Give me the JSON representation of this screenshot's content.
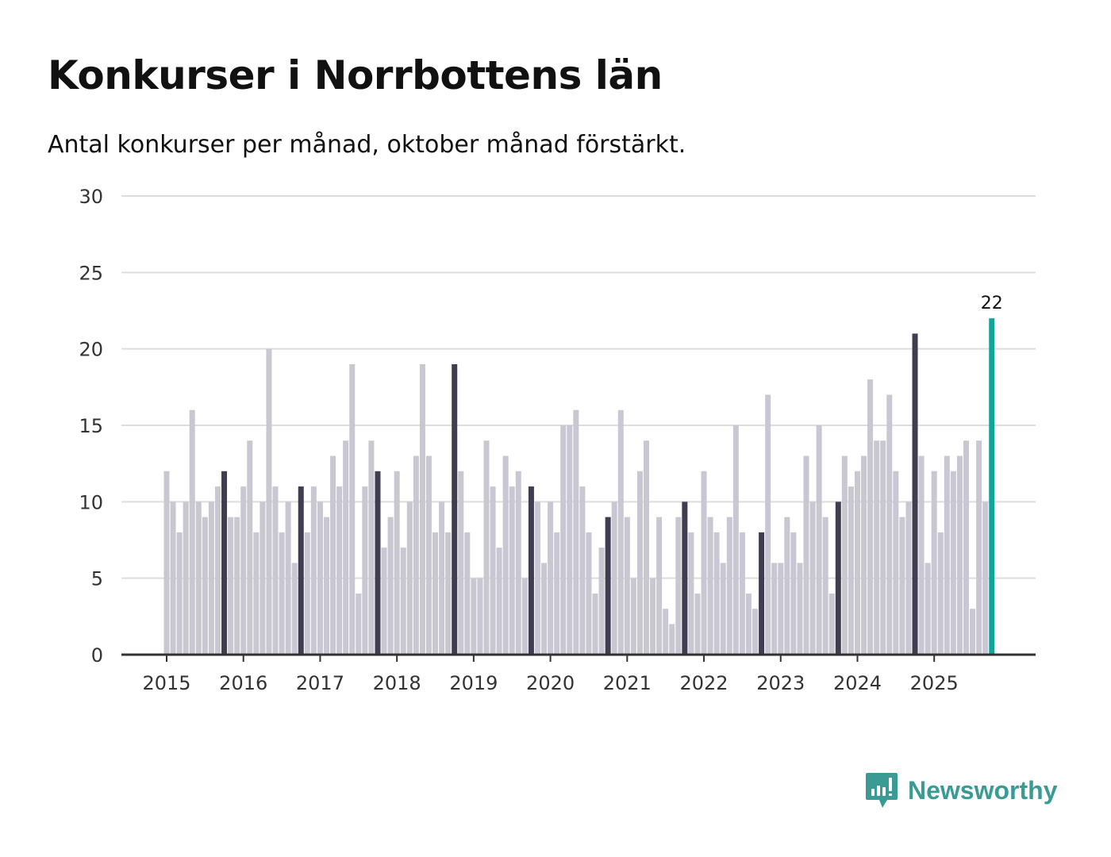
{
  "title": "Konkurser i Norrbottens län",
  "subtitle": "Antal konkurser per månad, oktober månad förstärkt.",
  "brand": "Newsworthy",
  "colors": {
    "default": "#c8c7d2",
    "october": "#3f3d4f",
    "latest": "#11a59a",
    "grid": "#dddddd",
    "axis": "#333333",
    "brand": "#3a9a94"
  },
  "chart_data": {
    "type": "bar",
    "title": "Konkurser i Norrbottens län",
    "xlabel": "",
    "ylabel": "",
    "ylim": [
      0,
      30
    ],
    "yticks": [
      0,
      5,
      10,
      15,
      20,
      25,
      30
    ],
    "xtick_labels": [
      "2015",
      "2016",
      "2017",
      "2018",
      "2019",
      "2020",
      "2021",
      "2022",
      "2023",
      "2024",
      "2025"
    ],
    "start": "2015-01",
    "highlight_month": 10,
    "grid": true,
    "latest_label": "22",
    "values": [
      12,
      10,
      8,
      10,
      16,
      10,
      9,
      10,
      11,
      12,
      9,
      9,
      11,
      14,
      8,
      10,
      20,
      11,
      8,
      10,
      6,
      11,
      8,
      11,
      10,
      9,
      13,
      11,
      14,
      19,
      4,
      11,
      14,
      12,
      7,
      9,
      12,
      7,
      10,
      13,
      19,
      13,
      8,
      10,
      8,
      19,
      12,
      8,
      5,
      5,
      14,
      11,
      7,
      13,
      11,
      12,
      5,
      11,
      10,
      6,
      10,
      8,
      15,
      15,
      16,
      11,
      8,
      4,
      7,
      9,
      10,
      16,
      9,
      5,
      12,
      14,
      5,
      9,
      3,
      2,
      9,
      10,
      8,
      4,
      12,
      9,
      8,
      6,
      9,
      15,
      8,
      4,
      3,
      8,
      17,
      6,
      6,
      9,
      8,
      6,
      13,
      10,
      15,
      9,
      4,
      10,
      13,
      11,
      12,
      13,
      18,
      14,
      14,
      17,
      12,
      9,
      10,
      21,
      13,
      6,
      12,
      8,
      13,
      12,
      13,
      14,
      3,
      14,
      10,
      22
    ]
  }
}
